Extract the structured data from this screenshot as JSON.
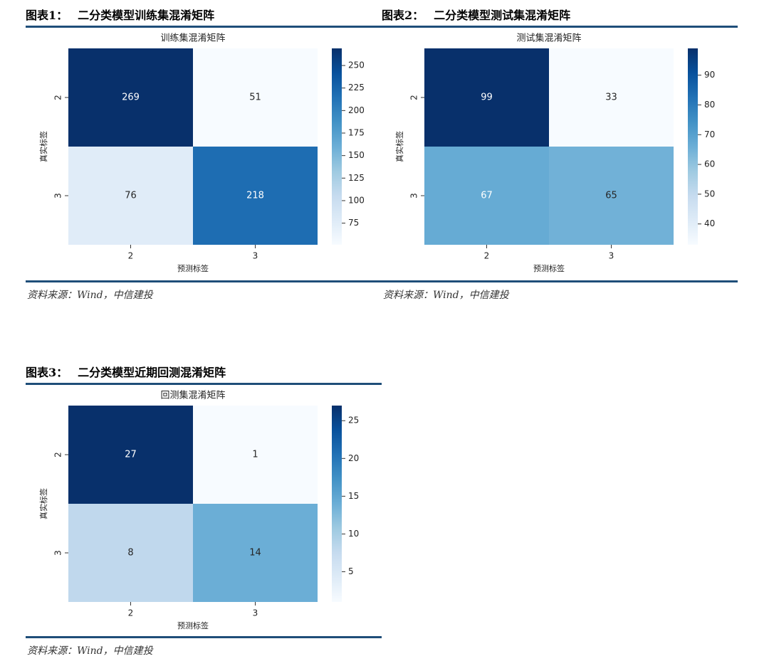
{
  "figures": [
    {
      "label": "图表1：",
      "title": "二分类模型训练集混淆矩阵",
      "source": "资料来源：Wind，中信建投"
    },
    {
      "label": "图表2：",
      "title": "二分类模型测试集混淆矩阵",
      "source": "资料来源：Wind，中信建投"
    },
    {
      "label": "图表3：",
      "title": "二分类模型近期回测混淆矩阵",
      "source": "资料来源：Wind，中信建投"
    }
  ],
  "chart_data": [
    {
      "type": "heatmap",
      "title": "训练集混淆矩阵",
      "xlabel": "预测标签",
      "ylabel": "真实标签",
      "x_categories": [
        "2",
        "3"
      ],
      "y_categories": [
        "2",
        "3"
      ],
      "values": [
        [
          269,
          51
        ],
        [
          76,
          218
        ]
      ],
      "colorbar": {
        "min": 51,
        "max": 269,
        "ticks": [
          75,
          100,
          125,
          150,
          175,
          200,
          225,
          250
        ]
      },
      "colormap": "Blues"
    },
    {
      "type": "heatmap",
      "title": "测试集混淆矩阵",
      "xlabel": "预测标签",
      "ylabel": "真实标签",
      "x_categories": [
        "2",
        "3"
      ],
      "y_categories": [
        "2",
        "3"
      ],
      "values": [
        [
          99,
          33
        ],
        [
          67,
          65
        ]
      ],
      "colorbar": {
        "min": 33,
        "max": 99,
        "ticks": [
          40,
          50,
          60,
          70,
          80,
          90
        ]
      },
      "colormap": "Blues"
    },
    {
      "type": "heatmap",
      "title": "回测集混淆矩阵",
      "xlabel": "预测标签",
      "ylabel": "真实标签",
      "x_categories": [
        "2",
        "3"
      ],
      "y_categories": [
        "2",
        "3"
      ],
      "values": [
        [
          27,
          1
        ],
        [
          8,
          14
        ]
      ],
      "colorbar": {
        "min": 1,
        "max": 27,
        "ticks": [
          5,
          10,
          15,
          20,
          25
        ]
      },
      "colormap": "Blues"
    }
  ]
}
